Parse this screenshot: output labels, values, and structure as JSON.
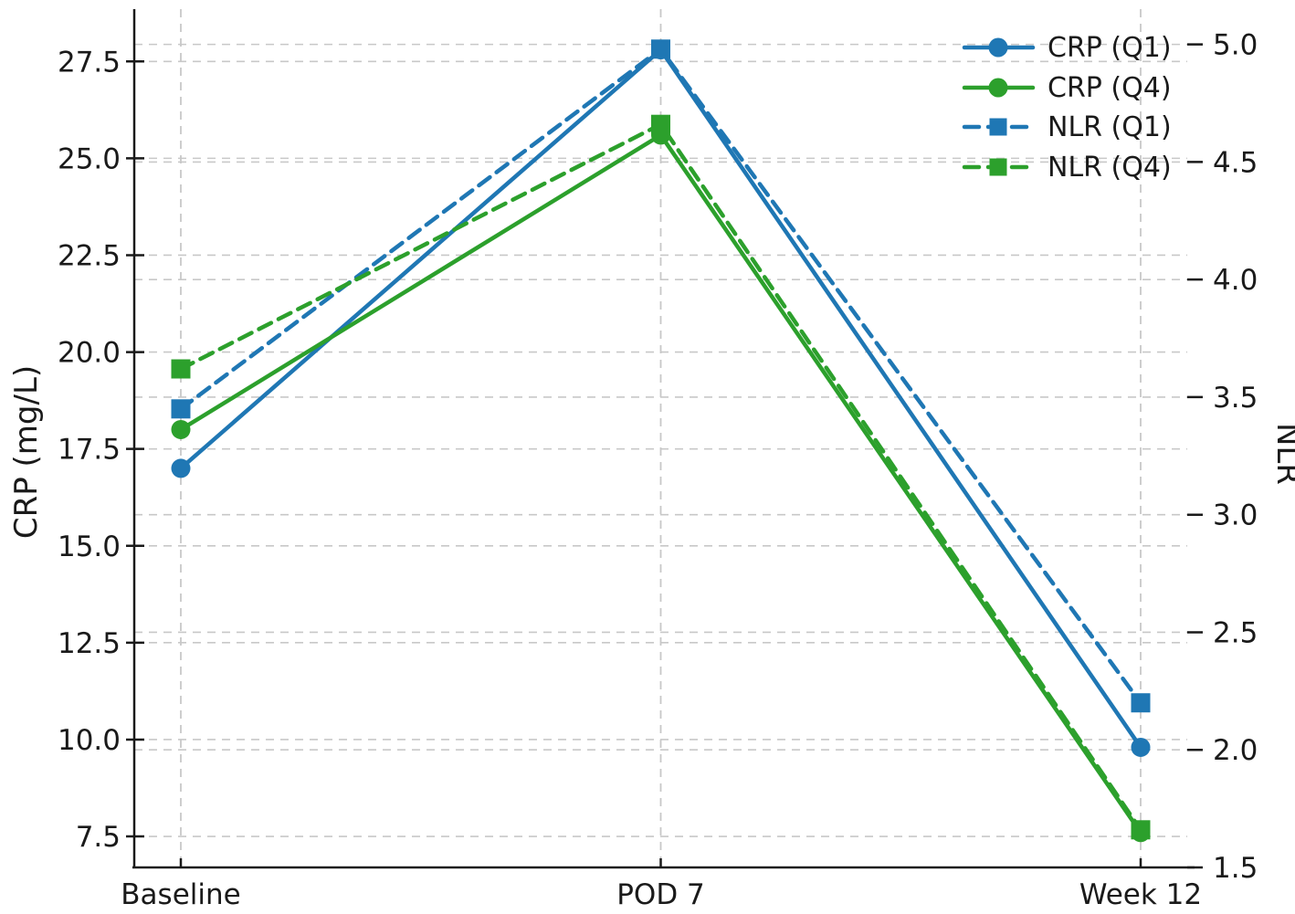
{
  "chart_data": {
    "type": "line",
    "categories": [
      "Baseline",
      "POD 7",
      "Week 12"
    ],
    "left_axis": {
      "label": "CRP (mg/L)",
      "ticks": [
        7.5,
        10.0,
        12.5,
        15.0,
        17.5,
        20.0,
        22.5,
        25.0,
        27.5
      ],
      "lim": [
        6.7,
        28.85
      ]
    },
    "right_axis": {
      "label": "NLR",
      "ticks": [
        1.5,
        2.0,
        2.5,
        3.0,
        3.5,
        4.0,
        4.5,
        5.0
      ],
      "lim": [
        1.5,
        5.15
      ]
    },
    "series": [
      {
        "name": "CRP (Q1)",
        "axis": "left",
        "color": "#1f77b4",
        "style": "solid",
        "marker": "circle",
        "values": [
          17.0,
          27.8,
          9.8
        ]
      },
      {
        "name": "CRP (Q4)",
        "axis": "left",
        "color": "#2ca02c",
        "style": "solid",
        "marker": "circle",
        "values": [
          18.0,
          25.6,
          7.6
        ]
      },
      {
        "name": "NLR (Q1)",
        "axis": "right",
        "color": "#1f77b4",
        "style": "dashed",
        "marker": "square",
        "values": [
          3.45,
          4.98,
          2.2
        ]
      },
      {
        "name": "NLR (Q4)",
        "axis": "right",
        "color": "#2ca02c",
        "style": "dashed",
        "marker": "square",
        "values": [
          3.62,
          4.66,
          1.66
        ]
      }
    ],
    "grid": true,
    "legend_position": "upper right",
    "colors": {
      "grid": "#c8c8c8",
      "spine": "#1a1a1a",
      "text": "#1a1a1a"
    }
  }
}
